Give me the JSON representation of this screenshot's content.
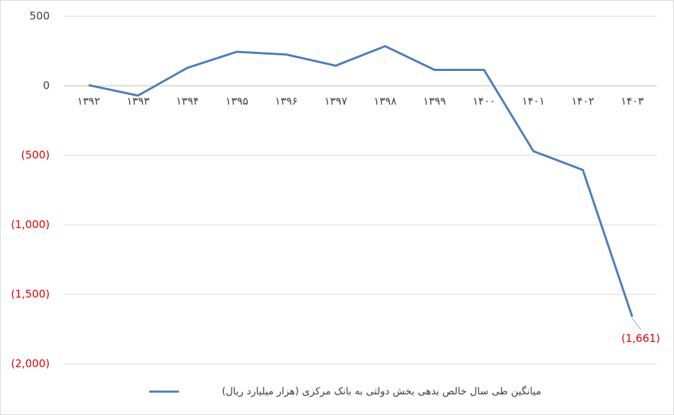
{
  "chart_data": {
    "type": "line",
    "categories": [
      "۱۳۹۲",
      "۱۳۹۳",
      "۱۳۹۴",
      "۱۳۹۵",
      "۱۳۹۶",
      "۱۳۹۷",
      "۱۳۹۸",
      "۱۳۹۹",
      "۱۴۰۰",
      "۱۴۰۱",
      "۱۴۰۲",
      "۱۴۰۳"
    ],
    "series": [
      {
        "name": "میانگین طی سال خالص بدهی بخش دولتی به بانک مرکزی (هزار میلیارد ریال)",
        "color": "#4a7ebb",
        "values": [
          5,
          -70,
          130,
          245,
          225,
          145,
          285,
          115,
          115,
          -470,
          -605,
          -1661
        ],
        "value_labels": [
          null,
          null,
          null,
          null,
          null,
          null,
          null,
          null,
          null,
          null,
          null,
          "(1,661)"
        ]
      }
    ],
    "ylim": [
      -2000,
      500
    ],
    "yticks": [
      500,
      0,
      {
        "value": -500,
        "label": "(500)"
      },
      {
        "value": -1000,
        "label": "(1,000)"
      },
      {
        "value": -1500,
        "label": "(1,500)"
      },
      {
        "value": -2000,
        "label": "(2,000)"
      }
    ],
    "grid": true,
    "negative_color": "#e00000",
    "legend": "bottom"
  }
}
